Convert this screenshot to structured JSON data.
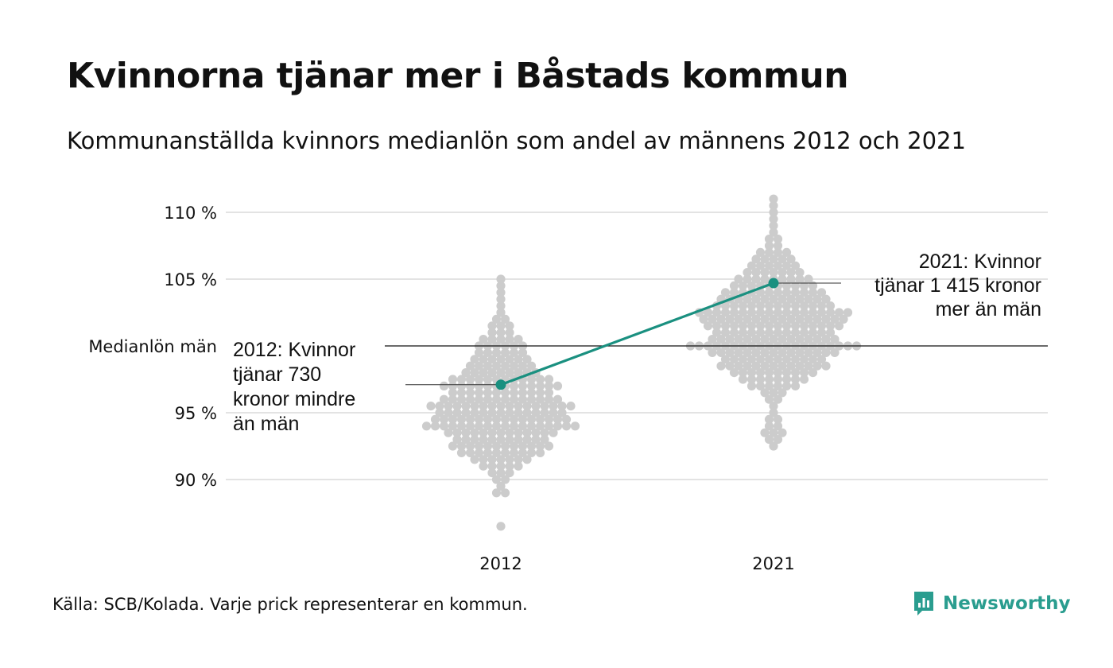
{
  "title": "Kvinnorna tjänar mer i Båstads kommun",
  "subtitle": "Kommunanställda kvinnors medianlön som andel av männens 2012 och 2021",
  "source": "Källa: SCB/Kolada. Varje prick representerar en kommun.",
  "brand": "Newsworthy",
  "colors": {
    "dots": "#cccccc",
    "highlight": "#1a9080",
    "grid": "#e3e3e3",
    "reference": "#111111"
  },
  "chart_data": {
    "type": "scatter",
    "title": "Kvinnorna tjänar mer i Båstads kommun",
    "subtitle": "Kommunanställda kvinnors medianlön som andel av männens 2012 och 2021",
    "categories": [
      "2012",
      "2021"
    ],
    "y_ticks": [
      {
        "value": 90,
        "label": "90 %"
      },
      {
        "value": 95,
        "label": "95 %"
      },
      {
        "value": 105,
        "label": "105 %"
      },
      {
        "value": 110,
        "label": "110 %"
      }
    ],
    "ylim": [
      86.5,
      111.5
    ],
    "reference_line": {
      "value": 100,
      "label": "Medianlön män"
    },
    "highlight": {
      "values": [
        97.1,
        104.7
      ],
      "annotations": [
        {
          "category": "2012",
          "lines": [
            "2012: Kvinnor",
            "tjänar 730",
            "kronor mindre",
            "än män"
          ]
        },
        {
          "category": "2021",
          "lines": [
            "2021: Kvinnor",
            "tjänar 1 415 kronor",
            "mer än män"
          ]
        }
      ]
    },
    "distribution": [
      {
        "category": "2012",
        "bins": [
          {
            "value": 86.5,
            "count": 1
          },
          {
            "value": 89.0,
            "count": 2
          },
          {
            "value": 89.5,
            "count": 1
          },
          {
            "value": 90.0,
            "count": 2
          },
          {
            "value": 90.5,
            "count": 3
          },
          {
            "value": 91.0,
            "count": 5
          },
          {
            "value": 91.5,
            "count": 7
          },
          {
            "value": 92.0,
            "count": 10
          },
          {
            "value": 92.5,
            "count": 12
          },
          {
            "value": 93.0,
            "count": 11
          },
          {
            "value": 93.5,
            "count": 13
          },
          {
            "value": 94.0,
            "count": 18
          },
          {
            "value": 94.5,
            "count": 16
          },
          {
            "value": 95.0,
            "count": 15
          },
          {
            "value": 95.5,
            "count": 17
          },
          {
            "value": 96.0,
            "count": 14
          },
          {
            "value": 96.5,
            "count": 12
          },
          {
            "value": 97.0,
            "count": 14
          },
          {
            "value": 97.5,
            "count": 12
          },
          {
            "value": 98.0,
            "count": 9
          },
          {
            "value": 98.5,
            "count": 8
          },
          {
            "value": 99.0,
            "count": 7
          },
          {
            "value": 99.5,
            "count": 6
          },
          {
            "value": 100.0,
            "count": 6
          },
          {
            "value": 100.5,
            "count": 5
          },
          {
            "value": 101.0,
            "count": 3
          },
          {
            "value": 101.5,
            "count": 3
          },
          {
            "value": 102.0,
            "count": 2
          },
          {
            "value": 102.5,
            "count": 1
          },
          {
            "value": 103.0,
            "count": 1
          },
          {
            "value": 103.5,
            "count": 1
          },
          {
            "value": 104.0,
            "count": 1
          },
          {
            "value": 104.5,
            "count": 1
          },
          {
            "value": 105.0,
            "count": 1
          }
        ]
      },
      {
        "category": "2021",
        "bins": [
          {
            "value": 92.5,
            "count": 1
          },
          {
            "value": 93.0,
            "count": 2
          },
          {
            "value": 93.5,
            "count": 3
          },
          {
            "value": 94.0,
            "count": 2
          },
          {
            "value": 94.5,
            "count": 2
          },
          {
            "value": 95.0,
            "count": 1
          },
          {
            "value": 95.5,
            "count": 1
          },
          {
            "value": 96.0,
            "count": 2
          },
          {
            "value": 96.5,
            "count": 3
          },
          {
            "value": 97.0,
            "count": 6
          },
          {
            "value": 97.5,
            "count": 8
          },
          {
            "value": 98.0,
            "count": 10
          },
          {
            "value": 98.5,
            "count": 13
          },
          {
            "value": 99.0,
            "count": 12
          },
          {
            "value": 99.5,
            "count": 15
          },
          {
            "value": 100.0,
            "count": 20
          },
          {
            "value": 100.5,
            "count": 15
          },
          {
            "value": 101.0,
            "count": 14
          },
          {
            "value": 101.5,
            "count": 16
          },
          {
            "value": 102.0,
            "count": 17
          },
          {
            "value": 102.5,
            "count": 18
          },
          {
            "value": 103.0,
            "count": 14
          },
          {
            "value": 103.5,
            "count": 13
          },
          {
            "value": 104.0,
            "count": 12
          },
          {
            "value": 104.5,
            "count": 10
          },
          {
            "value": 105.0,
            "count": 9
          },
          {
            "value": 105.5,
            "count": 7
          },
          {
            "value": 106.0,
            "count": 6
          },
          {
            "value": 106.5,
            "count": 5
          },
          {
            "value": 107.0,
            "count": 4
          },
          {
            "value": 107.5,
            "count": 2
          },
          {
            "value": 108.0,
            "count": 2
          },
          {
            "value": 108.5,
            "count": 1
          },
          {
            "value": 109.0,
            "count": 1
          },
          {
            "value": 109.5,
            "count": 1
          },
          {
            "value": 110.0,
            "count": 1
          },
          {
            "value": 110.5,
            "count": 1
          },
          {
            "value": 111.0,
            "count": 1
          }
        ]
      }
    ]
  }
}
